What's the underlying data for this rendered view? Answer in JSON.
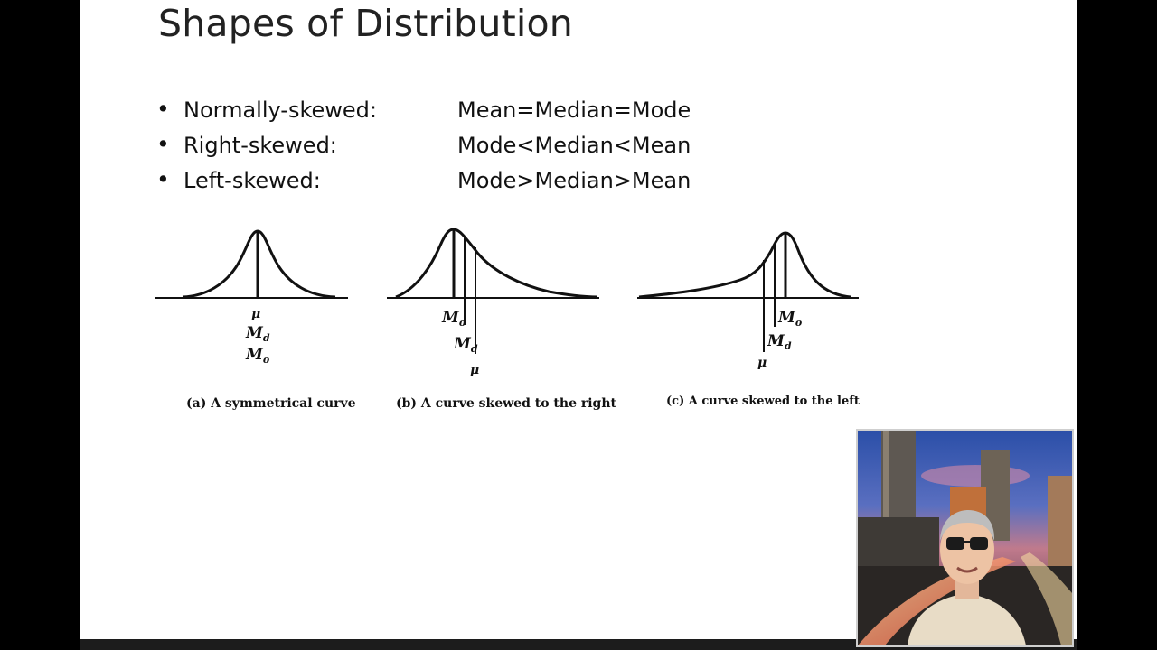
{
  "slide": {
    "title": "Shapes of Distribution",
    "bullets": [
      {
        "label": "Normally-skewed:",
        "value": "Mean=Median=Mode"
      },
      {
        "label": "Right-skewed:",
        "value": "Mode<Median<Mean"
      },
      {
        "label": "Left-skewed:",
        "value": "Mode>Median>Mean"
      }
    ],
    "bullet_symbol": "•"
  },
  "figures": {
    "a": {
      "mu": "μ",
      "md": "M",
      "md_sub": "d",
      "mo": "M",
      "mo_sub": "o",
      "caption": "(a) A symmetrical curve"
    },
    "b": {
      "mo": "M",
      "mo_sub": "o",
      "md": "M",
      "md_sub": "d",
      "mu": "μ",
      "caption": "(b) A curve skewed to the right"
    },
    "c": {
      "mo": "M",
      "mo_sub": "o",
      "md": "M",
      "md_sub": "d",
      "mu": "μ",
      "caption": "(c) A curve skewed to the left"
    }
  },
  "webcam": {
    "description_icon": "presenter-video-icon"
  },
  "colors": {
    "slide_background": "#ffffff",
    "frame": "#000000",
    "ink": "#111111"
  }
}
